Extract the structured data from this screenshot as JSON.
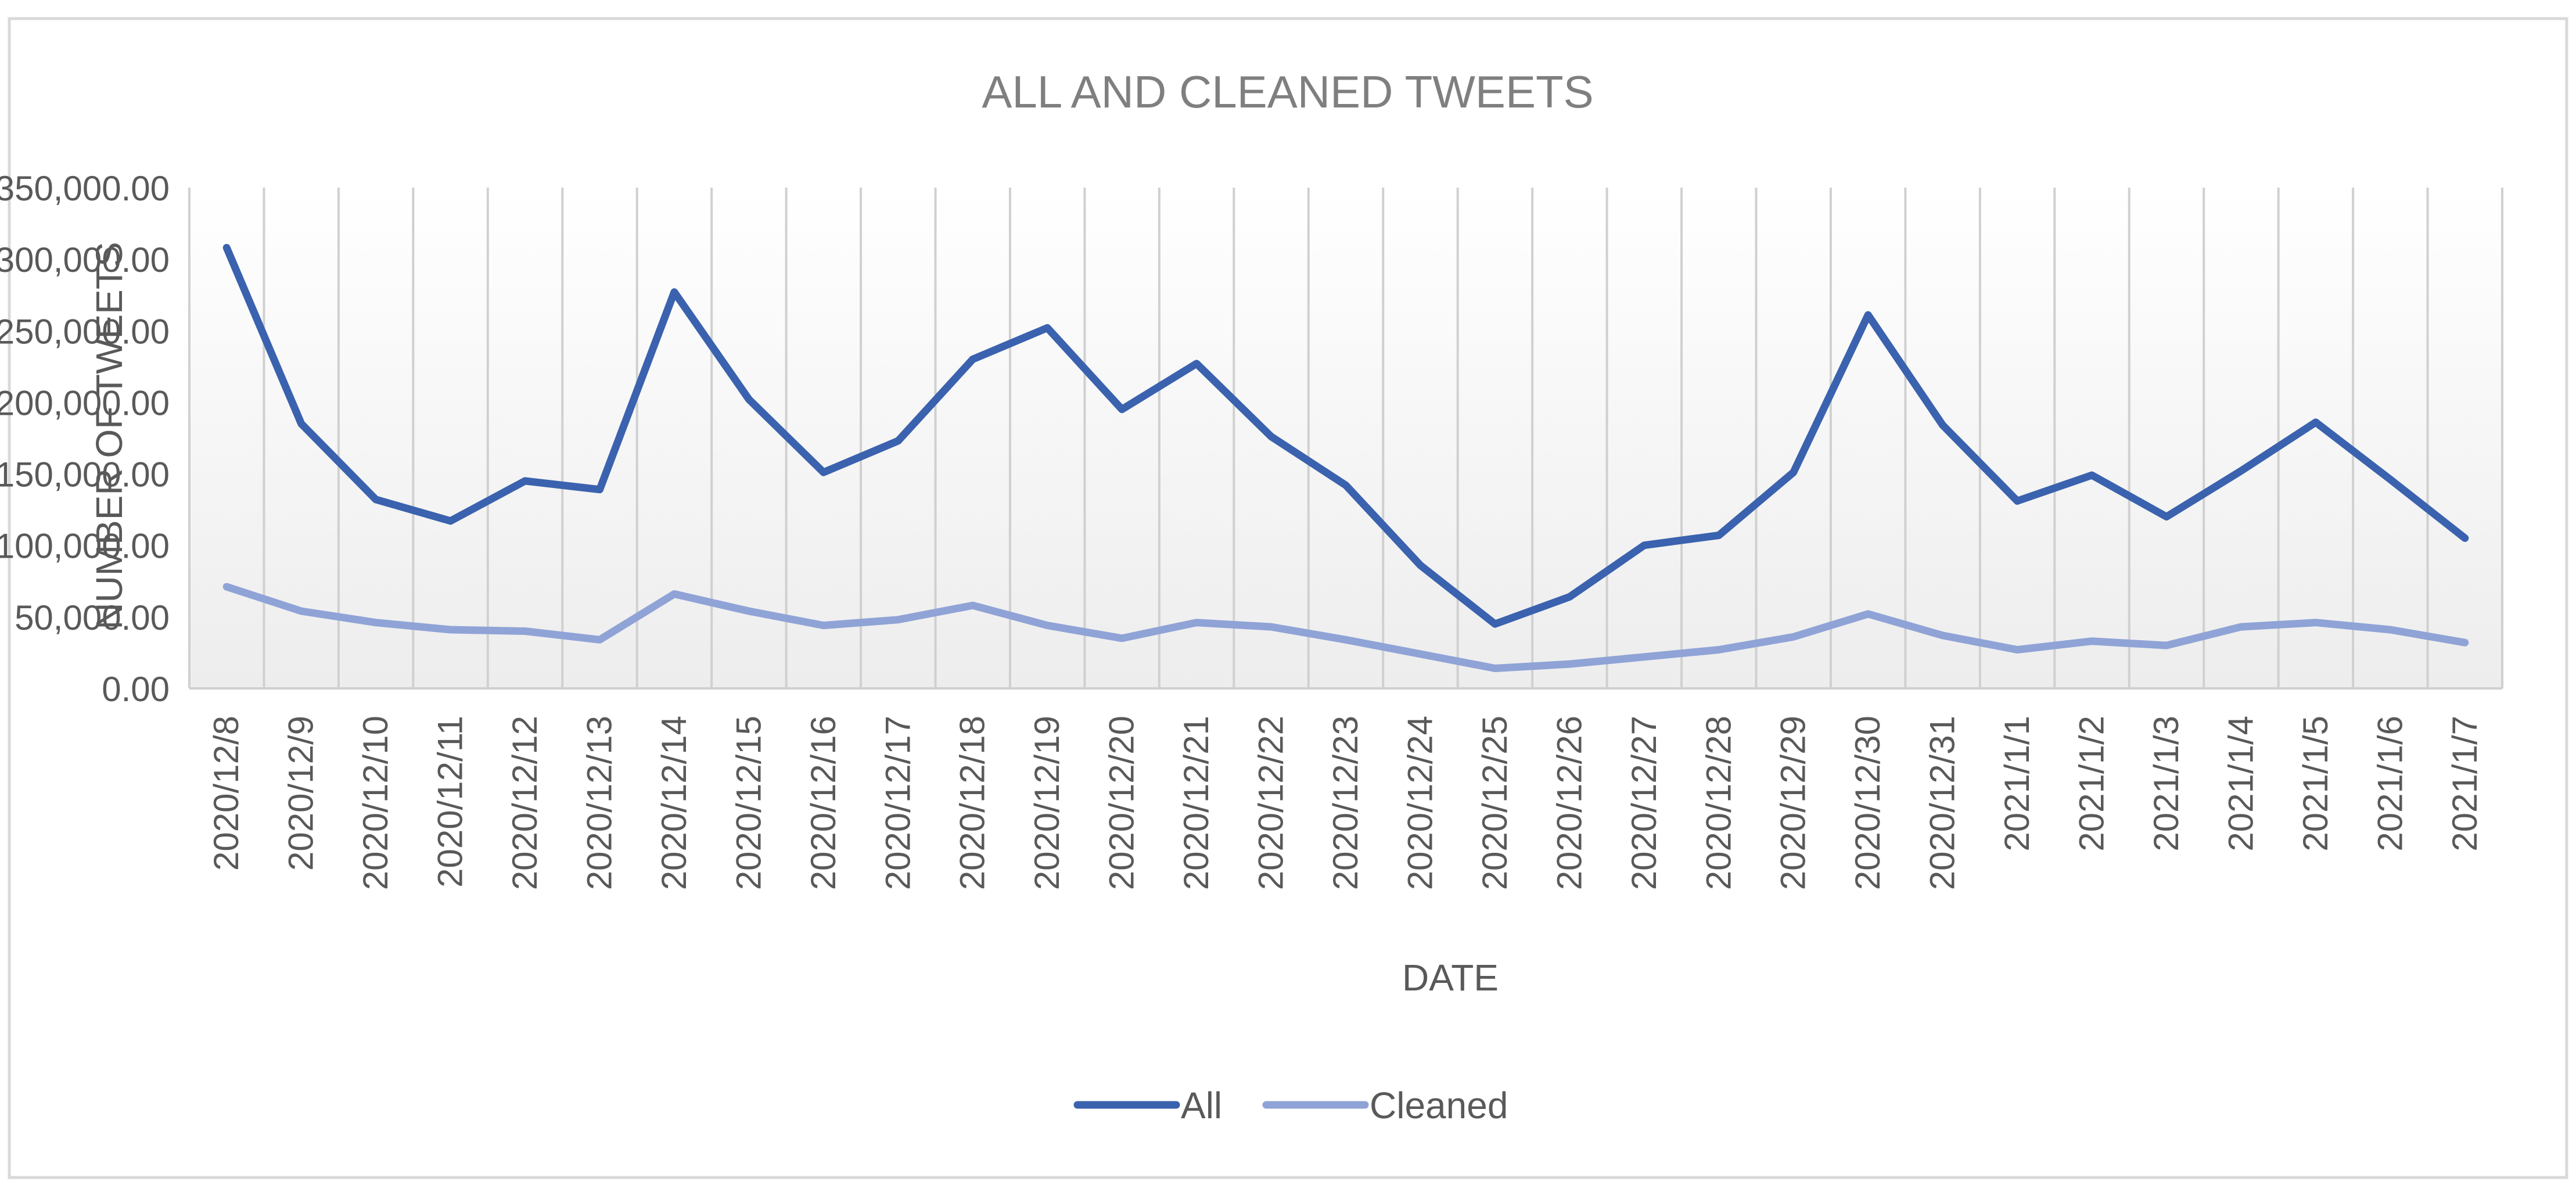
{
  "colors": {
    "series_all": "#3A62AE",
    "series_cleaned": "#8FA3D6",
    "text": "#595959",
    "title": "#7F7F7F",
    "grid": "#D0D0D0",
    "border": "#D9D9D9",
    "plot_bg_top": "#FFFFFF",
    "plot_bg_bottom": "#EDEDED"
  },
  "chart_data": {
    "type": "line",
    "title": "ALL AND CLEANED TWEETS",
    "xlabel": "DATE",
    "ylabel": "NUMBER OF TWEETS",
    "ylim": [
      0,
      350000
    ],
    "yticks": [
      0,
      50000,
      100000,
      150000,
      200000,
      250000,
      300000,
      350000
    ],
    "ytick_labels": [
      "0.00",
      "50,000.00",
      "100,000.00",
      "150,000.00",
      "200,000.00",
      "250,000.00",
      "300,000.00",
      "350,000.00"
    ],
    "grid": "vertical",
    "legend_position": "bottom",
    "categories": [
      "2020/12/8",
      "2020/12/9",
      "2020/12/10",
      "2020/12/11",
      "2020/12/12",
      "2020/12/13",
      "2020/12/14",
      "2020/12/15",
      "2020/12/16",
      "2020/12/17",
      "2020/12/18",
      "2020/12/19",
      "2020/12/20",
      "2020/12/21",
      "2020/12/22",
      "2020/12/23",
      "2020/12/24",
      "2020/12/25",
      "2020/12/26",
      "2020/12/27",
      "2020/12/28",
      "2020/12/29",
      "2020/12/30",
      "2020/12/31",
      "2021/1/1",
      "2021/1/2",
      "2021/1/3",
      "2021/1/4",
      "2021/1/5",
      "2021/1/6",
      "2021/1/7"
    ],
    "series": [
      {
        "name": "All",
        "values": [
          308000,
          185000,
          132000,
          117000,
          145000,
          139000,
          277000,
          202000,
          151000,
          173000,
          230000,
          252000,
          195000,
          227000,
          176000,
          142000,
          86000,
          45000,
          64000,
          100000,
          107000,
          151000,
          261000,
          184000,
          131000,
          149000,
          120000,
          152000,
          186000,
          146000,
          105000
        ]
      },
      {
        "name": "Cleaned",
        "values": [
          71000,
          54000,
          46000,
          41000,
          40000,
          34000,
          66000,
          54000,
          44000,
          48000,
          58000,
          44000,
          35000,
          46000,
          43000,
          34000,
          24000,
          14000,
          17000,
          22000,
          27000,
          36000,
          52000,
          37000,
          27000,
          33000,
          30000,
          43000,
          46000,
          41000,
          32000
        ]
      }
    ]
  }
}
